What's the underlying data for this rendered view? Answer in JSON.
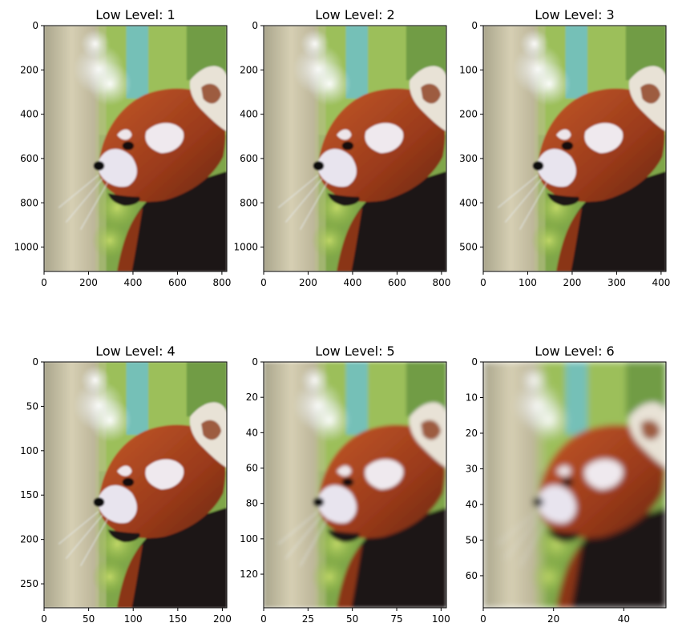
{
  "chart_data": [
    {
      "type": "image",
      "title": "Low Level: 1",
      "pixelate": 1,
      "xlim": [
        0,
        822
      ],
      "ylim": [
        1110,
        0
      ],
      "xticks": [
        0,
        200,
        400,
        600,
        800
      ],
      "yticks": [
        0,
        200,
        400,
        600,
        800,
        1000
      ]
    },
    {
      "type": "image",
      "title": "Low Level: 2",
      "pixelate": 1,
      "xlim": [
        0,
        822
      ],
      "ylim": [
        1110,
        0
      ],
      "xticks": [
        0,
        200,
        400,
        600,
        800
      ],
      "yticks": [
        0,
        200,
        400,
        600,
        800,
        1000
      ]
    },
    {
      "type": "image",
      "title": "Low Level: 3",
      "pixelate": 1,
      "xlim": [
        0,
        411
      ],
      "ylim": [
        555,
        0
      ],
      "xticks": [
        0,
        100,
        200,
        300,
        400
      ],
      "yticks": [
        0,
        100,
        200,
        300,
        400,
        500
      ]
    },
    {
      "type": "image",
      "title": "Low Level: 4",
      "pixelate": 1,
      "xlim": [
        0,
        205
      ],
      "ylim": [
        277,
        0
      ],
      "xticks": [
        0,
        50,
        100,
        150,
        200
      ],
      "yticks": [
        0,
        50,
        100,
        150,
        200,
        250
      ]
    },
    {
      "type": "image",
      "title": "Low Level: 5",
      "pixelate": 2,
      "xlim": [
        0,
        103
      ],
      "ylim": [
        139,
        0
      ],
      "xticks": [
        0,
        25,
        50,
        75,
        100
      ],
      "yticks": [
        0,
        20,
        40,
        60,
        80,
        100,
        120
      ]
    },
    {
      "type": "image",
      "title": "Low Level: 6",
      "pixelate": 5,
      "xlim": [
        0,
        52
      ],
      "ylim": [
        69,
        0
      ],
      "xticks": [
        0,
        20,
        40
      ],
      "yticks": [
        0,
        10,
        20,
        30,
        40,
        50,
        60
      ]
    }
  ],
  "image_subject": "red-panda-photo",
  "colors": {
    "background": "#ffffff",
    "fur_red": "#a8431f",
    "fur_dark": "#1c1214",
    "foliage_green": "#8fb84a",
    "bokeh_light": "#eef3f8",
    "tree_trunk": "#c9c2a4",
    "sky_teal": "#6fc0c8"
  }
}
